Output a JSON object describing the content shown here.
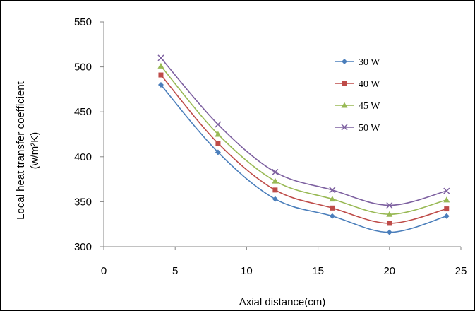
{
  "chart_data": {
    "type": "line",
    "xlabel": "Axial distance(cm)",
    "ylabel_line1": "Local heat transfer coefficient",
    "ylabel_line2": "(w/m²K)",
    "xlim": [
      0,
      25
    ],
    "ylim": [
      300,
      550
    ],
    "xticks": [
      0,
      5,
      10,
      15,
      20,
      25
    ],
    "yticks": [
      300,
      350,
      400,
      450,
      500,
      550
    ],
    "grid": false,
    "legend_position": "top-right",
    "smooth": true,
    "x": [
      4,
      8,
      12,
      16,
      20,
      24
    ],
    "series": [
      {
        "name": "30 W",
        "values": [
          480,
          405,
          353,
          334,
          316,
          334
        ],
        "color": "#4a7ebb",
        "marker": "diamond"
      },
      {
        "name": "40 W",
        "values": [
          491,
          415,
          363,
          343,
          326,
          342
        ],
        "color": "#be4b48",
        "marker": "square"
      },
      {
        "name": "45 W",
        "values": [
          501,
          425,
          373,
          353,
          336,
          352
        ],
        "color": "#98b954",
        "marker": "triangle"
      },
      {
        "name": "50 W",
        "values": [
          510,
          436,
          383,
          363,
          346,
          362
        ],
        "color": "#7d60a0",
        "marker": "x"
      }
    ]
  }
}
